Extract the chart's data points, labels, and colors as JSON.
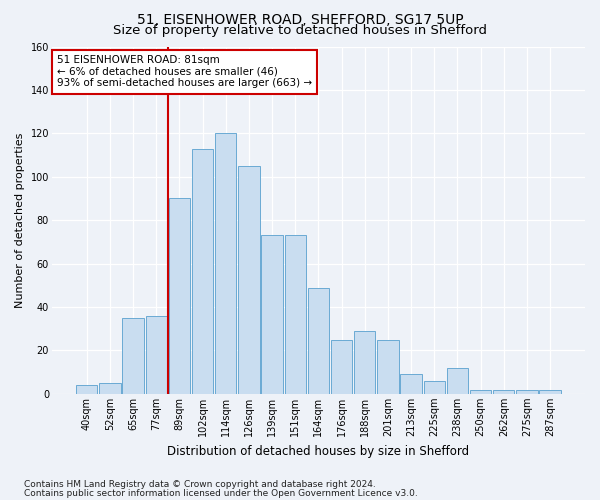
{
  "title1": "51, EISENHOWER ROAD, SHEFFORD, SG17 5UP",
  "title2": "Size of property relative to detached houses in Shefford",
  "xlabel": "Distribution of detached houses by size in Shefford",
  "ylabel": "Number of detached properties",
  "categories": [
    "40sqm",
    "52sqm",
    "65sqm",
    "77sqm",
    "89sqm",
    "102sqm",
    "114sqm",
    "126sqm",
    "139sqm",
    "151sqm",
    "164sqm",
    "176sqm",
    "188sqm",
    "201sqm",
    "213sqm",
    "225sqm",
    "238sqm",
    "250sqm",
    "262sqm",
    "275sqm",
    "287sqm"
  ],
  "values": [
    4,
    5,
    35,
    36,
    90,
    113,
    120,
    105,
    73,
    73,
    49,
    25,
    29,
    25,
    9,
    6,
    12,
    2,
    2,
    2,
    2
  ],
  "bar_color": "#c9ddf0",
  "bar_edge_color": "#6aaad4",
  "vline_x_index": 3.5,
  "vline_color": "#cc0000",
  "annotation_line1": "51 EISENHOWER ROAD: 81sqm",
  "annotation_line2": "← 6% of detached houses are smaller (46)",
  "annotation_line3": "93% of semi-detached houses are larger (663) →",
  "annotation_box_color": "#ffffff",
  "annotation_box_edge": "#cc0000",
  "ylim": [
    0,
    160
  ],
  "yticks": [
    0,
    20,
    40,
    60,
    80,
    100,
    120,
    140,
    160
  ],
  "footer1": "Contains HM Land Registry data © Crown copyright and database right 2024.",
  "footer2": "Contains public sector information licensed under the Open Government Licence v3.0.",
  "bg_color": "#eef2f8",
  "plot_bg_color": "#eef2f8",
  "grid_color": "#ffffff",
  "title1_fontsize": 10,
  "title2_fontsize": 9.5,
  "xlabel_fontsize": 8.5,
  "ylabel_fontsize": 8,
  "tick_fontsize": 7,
  "annotation_fontsize": 7.5,
  "footer_fontsize": 6.5
}
